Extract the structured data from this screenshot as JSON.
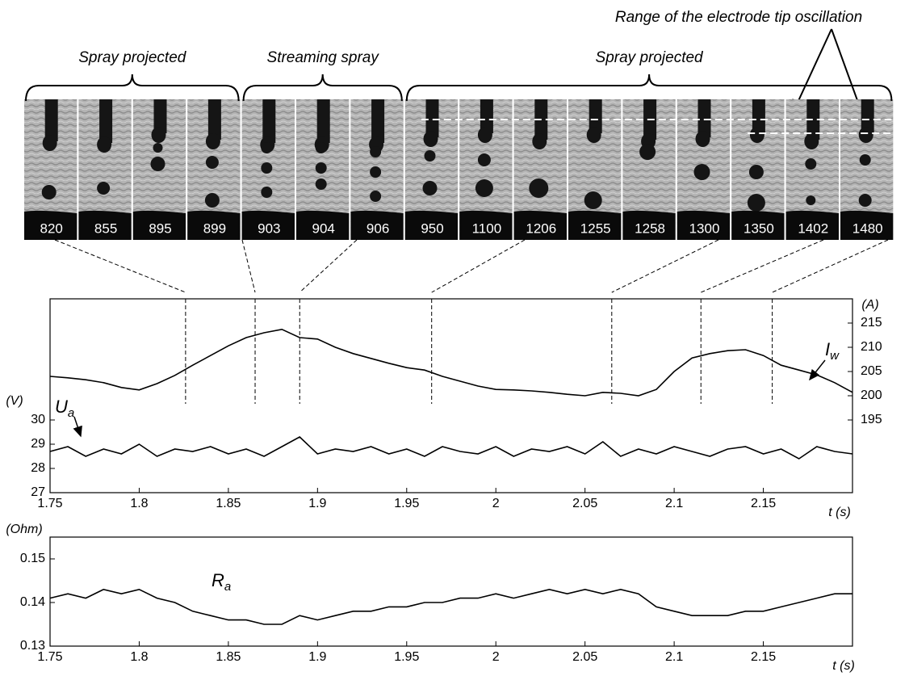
{
  "annotation": "Range of the electrode tip oscillation",
  "groups": [
    "Spray projected",
    "Streaming spray",
    "Spray projected"
  ],
  "frames": [
    "820",
    "855",
    "895",
    "899",
    "903",
    "904",
    "906",
    "950",
    "1100",
    "1206",
    "1255",
    "1258",
    "1300",
    "1350",
    "1402",
    "1480"
  ],
  "chart_data": [
    {
      "type": "line",
      "x": [
        1.75,
        1.76,
        1.77,
        1.78,
        1.79,
        1.8,
        1.81,
        1.82,
        1.83,
        1.84,
        1.85,
        1.86,
        1.87,
        1.88,
        1.89,
        1.9,
        1.91,
        1.92,
        1.93,
        1.94,
        1.95,
        1.96,
        1.97,
        1.98,
        1.99,
        2,
        2.01,
        2.02,
        2.03,
        2.04,
        2.05,
        2.06,
        2.07,
        2.08,
        2.09,
        2.1,
        2.11,
        2.12,
        2.13,
        2.14,
        2.15,
        2.16,
        2.17,
        2.18,
        2.19,
        2.2
      ],
      "xlim": [
        1.75,
        2.2
      ],
      "xticks": [
        1.75,
        1.8,
        1.85,
        1.9,
        1.95,
        2,
        2.05,
        2.1,
        2.15
      ],
      "ylim": [
        27,
        35
      ],
      "yticks": [
        27,
        28,
        29,
        30
      ],
      "y2lim": [
        180,
        220
      ],
      "y2ticks": [
        195,
        200,
        205,
        210,
        215
      ],
      "xlabel": "t (s)",
      "ylabel": "(V)",
      "y2label": "(A)",
      "markers": [
        1.826,
        1.865,
        1.89,
        1.964,
        2.065,
        2.115,
        2.155
      ],
      "series": [
        {
          "name": "I",
          "subscript": "w",
          "color": "#000000",
          "axis": "y2",
          "values": [
            204,
            203.7,
            203.3,
            202.7,
            201.7,
            201.2,
            202.5,
            204.2,
            206.3,
            208.3,
            210.3,
            212,
            213,
            213.7,
            212,
            211.7,
            210,
            208.7,
            207.7,
            206.7,
            205.8,
            205.3,
            204,
            203,
            202,
            201.3,
            201.2,
            201,
            200.7,
            200.3,
            200,
            200.7,
            200.5,
            200,
            201.3,
            205,
            207.8,
            208.7,
            209.3,
            209.5,
            208.3,
            206.3,
            205.3,
            204.3,
            202.7,
            200.7
          ]
        },
        {
          "name": "U",
          "subscript": "a",
          "color": "#000000",
          "values": [
            28.7,
            28.9,
            28.5,
            28.8,
            28.6,
            29.0,
            28.5,
            28.8,
            28.7,
            28.9,
            28.6,
            28.8,
            28.5,
            28.9,
            29.3,
            28.6,
            28.8,
            28.7,
            28.9,
            28.6,
            28.8,
            28.5,
            28.9,
            28.7,
            28.6,
            28.9,
            28.5,
            28.8,
            28.7,
            28.9,
            28.6,
            29.1,
            28.5,
            28.8,
            28.6,
            28.9,
            28.7,
            28.5,
            28.8,
            28.9,
            28.6,
            28.8,
            28.4,
            28.9,
            28.7,
            28.6
          ]
        }
      ]
    },
    {
      "type": "line",
      "x": [
        1.75,
        1.76,
        1.77,
        1.78,
        1.79,
        1.8,
        1.81,
        1.82,
        1.83,
        1.84,
        1.85,
        1.86,
        1.87,
        1.88,
        1.89,
        1.9,
        1.91,
        1.92,
        1.93,
        1.94,
        1.95,
        1.96,
        1.97,
        1.98,
        1.99,
        2,
        2.01,
        2.02,
        2.03,
        2.04,
        2.05,
        2.06,
        2.07,
        2.08,
        2.09,
        2.1,
        2.11,
        2.12,
        2.13,
        2.14,
        2.15,
        2.16,
        2.17,
        2.18,
        2.19,
        2.2
      ],
      "xlim": [
        1.75,
        2.2
      ],
      "xticks": [
        1.75,
        1.8,
        1.85,
        1.9,
        1.95,
        2,
        2.05,
        2.1,
        2.15
      ],
      "ylim": [
        0.13,
        0.155
      ],
      "yticks": [
        0.13,
        0.14,
        0.15
      ],
      "xlabel": "t (s)",
      "ylabel": "(Ohm)",
      "series": [
        {
          "name": "R",
          "subscript": "a",
          "color": "#000000",
          "values": [
            0.141,
            0.142,
            0.141,
            0.143,
            0.142,
            0.143,
            0.141,
            0.14,
            0.138,
            0.137,
            0.136,
            0.136,
            0.135,
            0.135,
            0.137,
            0.136,
            0.137,
            0.138,
            0.138,
            0.139,
            0.139,
            0.14,
            0.14,
            0.141,
            0.141,
            0.142,
            0.141,
            0.142,
            0.143,
            0.142,
            0.143,
            0.142,
            0.143,
            0.142,
            0.139,
            0.138,
            0.137,
            0.137,
            0.137,
            0.138,
            0.138,
            0.139,
            0.14,
            0.141,
            0.142,
            0.142
          ]
        }
      ]
    }
  ]
}
